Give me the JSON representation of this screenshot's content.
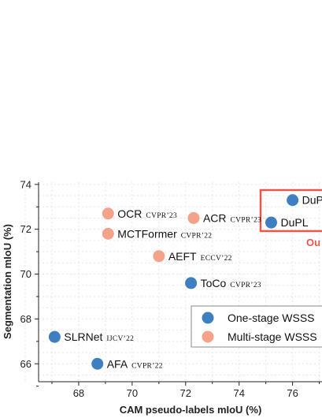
{
  "colors": {
    "one_stage": "#3d7fc1",
    "multi_stage": "#f4a38a",
    "highlight": "#e8574a",
    "axis": "#222222"
  },
  "chart_data": {
    "type": "scatter",
    "xlabel": "CAM pseudo-labels mIoU (%)",
    "ylabel": "Segmentation mIoU (%)",
    "xlim": [
      66.5,
      77.1
    ],
    "ylim": [
      65.2,
      74.1
    ],
    "xticks": [
      68,
      70,
      72,
      74,
      76
    ],
    "yticks": [
      66,
      68,
      70,
      72,
      74
    ],
    "grid": true,
    "legend_placement": "bottom-right",
    "legend": [
      {
        "series": "one_stage",
        "label": "One-stage  WSSS"
      },
      {
        "series": "multi_stage",
        "label": "Multi-stage WSSS"
      }
    ],
    "highlight_label": "Ou",
    "points": [
      {
        "name": "DuP",
        "venue": "",
        "x": 76.0,
        "y": 73.3,
        "series": "one_stage"
      },
      {
        "name": "DuPL",
        "venue": "",
        "x": 75.2,
        "y": 72.3,
        "series": "one_stage"
      },
      {
        "name": "OCR",
        "venue": "CVPR’23",
        "x": 69.1,
        "y": 72.7,
        "series": "multi_stage"
      },
      {
        "name": "ACR",
        "venue": "CVPR’23",
        "x": 72.3,
        "y": 72.5,
        "series": "multi_stage"
      },
      {
        "name": "MCTFormer",
        "venue": "CVPR’22",
        "x": 69.1,
        "y": 71.8,
        "series": "multi_stage"
      },
      {
        "name": "AEFT",
        "venue": "ECCV’22",
        "x": 71.0,
        "y": 70.8,
        "series": "multi_stage"
      },
      {
        "name": "ToCo",
        "venue": "CVPR’23",
        "x": 72.2,
        "y": 69.6,
        "series": "one_stage"
      },
      {
        "name": "SLRNet",
        "venue": "IJCV’22",
        "x": 67.1,
        "y": 67.2,
        "series": "one_stage"
      },
      {
        "name": "AFA",
        "venue": "CVPR’22",
        "x": 68.7,
        "y": 66.0,
        "series": "one_stage"
      }
    ]
  }
}
